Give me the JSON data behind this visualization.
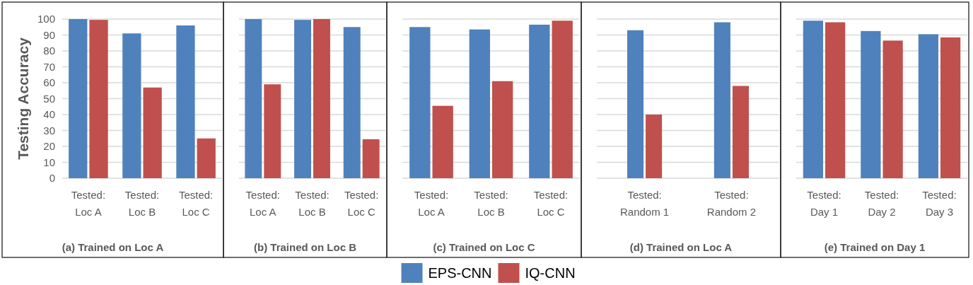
{
  "chart_data": [
    {
      "type": "bar",
      "title": "(a) Trained on Loc A",
      "ylabel": "Testing Accuracy",
      "categories": [
        "Tested: Loc A",
        "Tested: Loc B",
        "Tested: Loc C"
      ],
      "series": [
        {
          "color": "#4f81bd",
          "values": [
            100,
            91,
            96
          ]
        },
        {
          "color": "#c0504d",
          "values": [
            99.5,
            57,
            25
          ]
        }
      ],
      "ylim": [
        0,
        100
      ],
      "yticks": [
        0,
        10,
        20,
        30,
        40,
        50,
        60,
        70,
        80,
        90,
        100
      ],
      "grid": "y"
    },
    {
      "type": "bar",
      "title": "(b) Trained on Loc B",
      "categories": [
        "Tested: Loc A",
        "Tested: Loc B",
        "Tested: Loc C"
      ],
      "series": [
        {
          "color": "#4f81bd",
          "values": [
            100,
            99.5,
            95
          ]
        },
        {
          "color": "#c0504d",
          "values": [
            59,
            100,
            24.5
          ]
        }
      ],
      "ylim": [
        0,
        100
      ],
      "yticks": [
        0,
        10,
        20,
        30,
        40,
        50,
        60,
        70,
        80,
        90,
        100
      ],
      "grid": "y",
      "tick_labels": "x"
    },
    {
      "type": "bar",
      "title": "(c) Trained on Loc C",
      "categories": [
        "Tested: Loc A",
        "Tested: Loc B",
        "Tested: Loc C"
      ],
      "series": [
        {
          "name": "EPS-CNN",
          "color": "#4f81bd",
          "values": [
            95,
            93.5,
            96.5
          ]
        },
        {
          "name": "IQ-CNN",
          "color": "#c0504d",
          "values": [
            45.5,
            61,
            99
          ]
        }
      ],
      "ylim": [
        0,
        100
      ],
      "yticks": [
        0,
        10,
        20,
        30,
        40,
        50,
        60,
        70,
        80,
        90,
        100
      ],
      "grid": "y",
      "tick_labels": "x",
      "legend": "bottom"
    },
    {
      "type": "bar",
      "title": "(d) Trained on Loc A",
      "categories": [
        "Tested: Random 1",
        "Tested: Random 2"
      ],
      "series": [
        {
          "color": "#4f81bd",
          "values": [
            93,
            98
          ]
        },
        {
          "color": "#c0504d",
          "values": [
            40,
            58
          ]
        }
      ],
      "ylim": [
        0,
        100
      ],
      "yticks": [
        0,
        10,
        20,
        30,
        40,
        50,
        60,
        70,
        80,
        90,
        100
      ],
      "grid": "y",
      "tick_labels": "x"
    },
    {
      "type": "bar",
      "title": "(e) Trained on Day 1",
      "categories": [
        "Tested: Day 1",
        "Tested: Day 2",
        "Tested: Day 3"
      ],
      "series": [
        {
          "color": "#4f81bd",
          "values": [
            99,
            92.5,
            90.5
          ]
        },
        {
          "color": "#c0504d",
          "values": [
            98,
            86.5,
            88.5
          ]
        }
      ],
      "ylim": [
        0,
        100
      ],
      "yticks": [
        0,
        10,
        20,
        30,
        40,
        50,
        60,
        70,
        80,
        90,
        100
      ],
      "grid": "y",
      "tick_labels": "x"
    }
  ]
}
